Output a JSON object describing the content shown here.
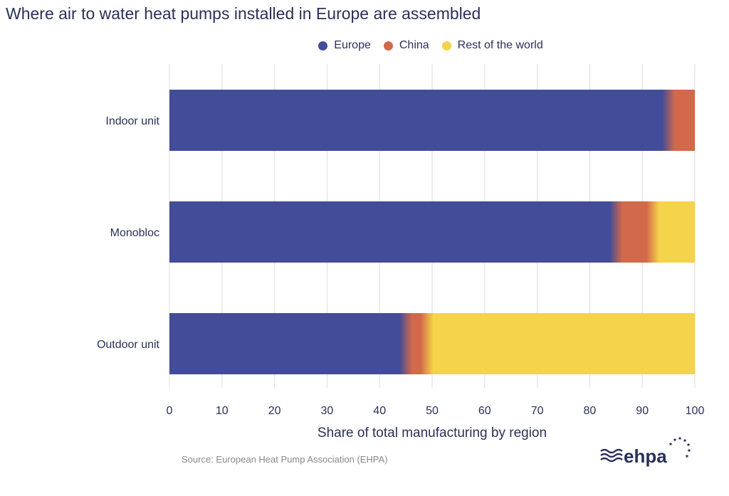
{
  "chart_data": {
    "type": "bar",
    "orientation": "horizontal",
    "stacked": true,
    "title": "Where air to water heat pumps installed in Europe are assembled",
    "xlabel": "Share of total manufacturing by region",
    "ylabel": "",
    "xlim": [
      0,
      100
    ],
    "xticks": [
      0,
      10,
      20,
      30,
      40,
      50,
      60,
      70,
      80,
      90,
      100
    ],
    "grid": true,
    "legend_position": "top",
    "categories": [
      "Indoor unit",
      "Monobloc",
      "Outdoor unit"
    ],
    "series": [
      {
        "name": "Europe",
        "color": "#434c98",
        "values": [
          95,
          85,
          45
        ]
      },
      {
        "name": "China",
        "color": "#d2694a",
        "values": [
          5,
          7,
          4
        ]
      },
      {
        "name": "Rest of the world",
        "color": "#f5d34a",
        "values": [
          0,
          8,
          51
        ]
      }
    ]
  },
  "source": "Source: European Heat Pump Association (EHPA)",
  "logo": {
    "text": "ehpa",
    "color": "#2a3159"
  }
}
